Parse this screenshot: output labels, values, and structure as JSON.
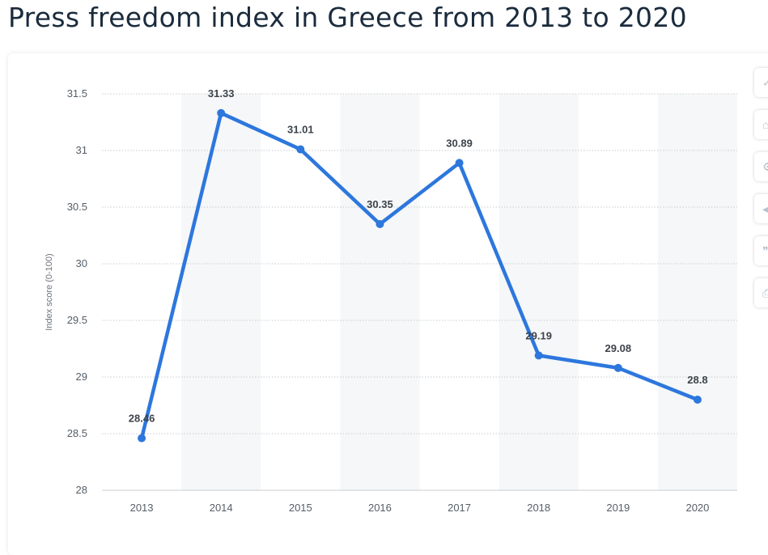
{
  "header": {
    "title": "Press freedom index in Greece from 2013 to 2020"
  },
  "toolbar": {
    "buttons": [
      {
        "icon": "star-icon",
        "glyph": "✓"
      },
      {
        "icon": "bell-icon",
        "glyph": "⌂"
      },
      {
        "icon": "settings-icon",
        "glyph": "⚙"
      },
      {
        "icon": "share-icon",
        "glyph": "◂"
      },
      {
        "icon": "quote-icon",
        "glyph": "❞"
      },
      {
        "icon": "print-icon",
        "glyph": "⎙"
      }
    ]
  },
  "chart_data": {
    "type": "line",
    "title": "Press freedom index in Greece from 2013 to 2020",
    "xlabel": "",
    "ylabel": "Index score (0-100)",
    "categories": [
      "2013",
      "2014",
      "2015",
      "2016",
      "2017",
      "2018",
      "2019",
      "2020"
    ],
    "series": [
      {
        "values": [
          28.46,
          31.33,
          31.01,
          30.35,
          30.89,
          29.19,
          29.08,
          28.8
        ]
      }
    ],
    "data_labels": [
      "28.46",
      "31.33",
      "31.01",
      "30.35",
      "30.89",
      "29.19",
      "29.08",
      "28.8"
    ],
    "ylim": [
      28,
      31.5
    ],
    "yticks": [
      "28",
      "28.5",
      "29",
      "29.5",
      "30",
      "30.5",
      "31",
      "31.5"
    ],
    "grid": true,
    "line_color": "#2d77dd",
    "band_color": "#f6f7f8",
    "grid_color": "#c8ccd1"
  }
}
